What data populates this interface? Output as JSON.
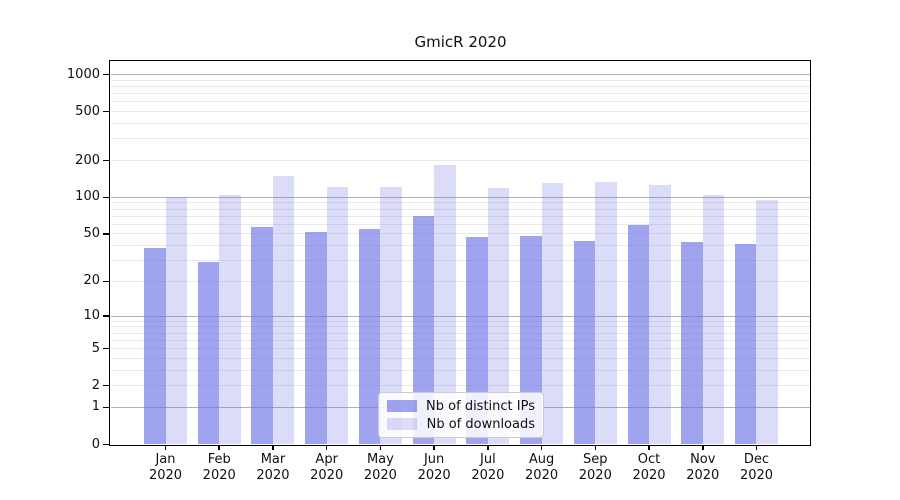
{
  "title": "GmicR 2020",
  "chart_data": {
    "type": "bar",
    "title": "GmicR 2020",
    "categories": [
      "Jan 2020",
      "Feb 2020",
      "Mar 2020",
      "Apr 2020",
      "May 2020",
      "Jun 2020",
      "Jul 2020",
      "Aug 2020",
      "Sep 2020",
      "Oct 2020",
      "Nov 2020",
      "Dec 2020"
    ],
    "series": [
      {
        "name": "Nb of distinct IPs",
        "color": "rgba(109,114,229,0.65)",
        "values": [
          38,
          29,
          57,
          52,
          55,
          70,
          47,
          48,
          44,
          59,
          43,
          41
        ]
      },
      {
        "name": "Nb of downloads",
        "color": "rgba(109,114,229,0.25)",
        "values": [
          100,
          105,
          150,
          121,
          121,
          185,
          119,
          130,
          133,
          126,
          105,
          95
        ]
      }
    ],
    "xlabel": "",
    "ylabel": "",
    "y_scale": "log10(value+1)",
    "y_ticks": [
      0,
      1,
      2,
      5,
      10,
      20,
      50,
      100,
      200,
      500,
      1000
    ],
    "ylim": [
      0,
      1400
    ],
    "grid": "on",
    "grid_major_values": [
      1,
      10,
      100,
      1000
    ],
    "grid_minor_values": [
      2,
      3,
      4,
      5,
      6,
      7,
      8,
      9,
      20,
      30,
      40,
      50,
      60,
      70,
      80,
      90,
      200,
      300,
      400,
      500,
      600,
      700,
      800,
      900
    ],
    "legend_position": "lower-center",
    "legend_entries": [
      "Nb of distinct IPs",
      "Nb of downloads"
    ]
  },
  "colors": {
    "bar_base": "#6d72e5",
    "grid_major": "#b1b1b1",
    "grid_minor": "#e9e9e9",
    "spine": "#000000",
    "background": "#ffffff"
  }
}
